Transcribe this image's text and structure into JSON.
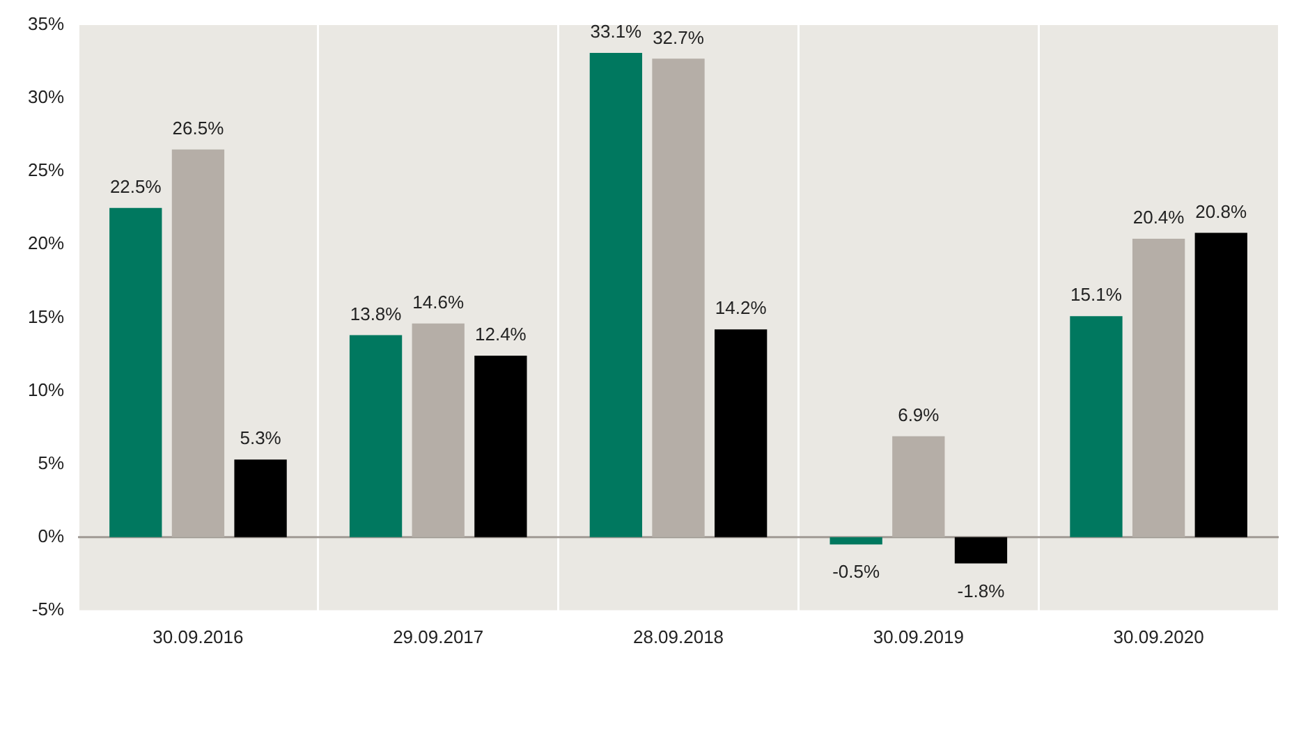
{
  "chart_data": {
    "type": "bar",
    "categories": [
      "30.09.2016",
      "29.09.2017",
      "28.09.2018",
      "30.09.2019",
      "30.09.2020"
    ],
    "series": [
      {
        "color": "#00785f",
        "values": [
          22.5,
          13.8,
          33.1,
          -0.5,
          15.1
        ],
        "value_labels": [
          "22.5%",
          "13.8%",
          "33.1%",
          "-0.5%",
          "15.1%"
        ]
      },
      {
        "color": "#b5aea7",
        "values": [
          26.5,
          14.6,
          32.7,
          6.9,
          20.4
        ],
        "value_labels": [
          "26.5%",
          "14.6%",
          "32.7%",
          "6.9%",
          "20.4%"
        ]
      },
      {
        "color": "#000000",
        "values": [
          5.3,
          12.4,
          14.2,
          -1.8,
          20.8
        ],
        "value_labels": [
          "5.3%",
          "12.4%",
          "14.2%",
          "-1.8%",
          "20.8%"
        ]
      }
    ],
    "ylim": [
      -5,
      35
    ],
    "yticks": [
      {
        "value": -5,
        "label": "-5%"
      },
      {
        "value": 0,
        "label": "0%"
      },
      {
        "value": 5,
        "label": "5%"
      },
      {
        "value": 10,
        "label": "10%"
      },
      {
        "value": 15,
        "label": "15%"
      },
      {
        "value": 20,
        "label": "20%"
      },
      {
        "value": 25,
        "label": "25%"
      },
      {
        "value": 30,
        "label": "30%"
      },
      {
        "value": 35,
        "label": "35%"
      }
    ],
    "ref_lines": [
      {
        "axis": "y",
        "value": 0,
        "color": "#a09a94"
      }
    ],
    "grid": "x",
    "legend": false
  }
}
